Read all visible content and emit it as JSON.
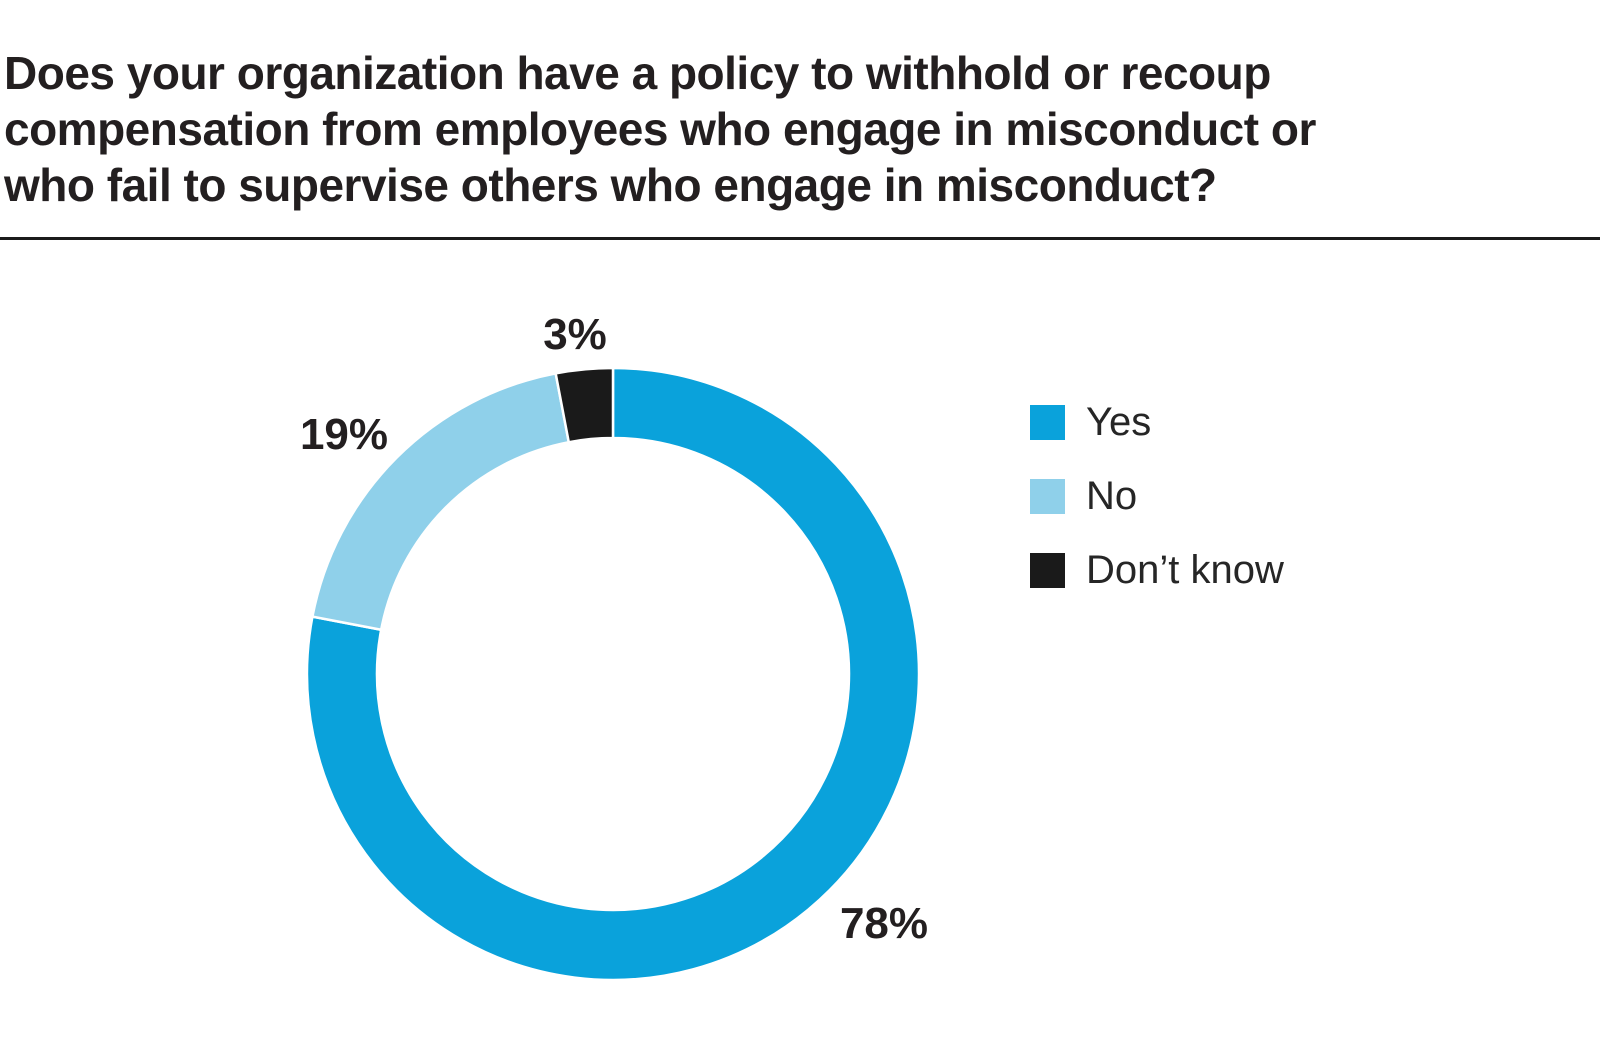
{
  "title": {
    "text": "Does your organization have a policy to withhold or recoup compensation from employees who engage in misconduct or who fail to supervise others who engage in misconduct?",
    "lines": [
      "Does your organization have a policy to withhold or recoup",
      "compensation from employees who engage in misconduct or",
      "who fail to supervise others who engage in misconduct?"
    ]
  },
  "chart_data": {
    "type": "pie",
    "subtype": "donut",
    "title": "Does your organization have a policy to withhold or recoup compensation from employees who engage in misconduct or who fail to supervise others who engage in misconduct?",
    "categories": [
      "Yes",
      "No",
      "Don't know"
    ],
    "values": [
      78,
      19,
      3
    ],
    "unit": "%",
    "direction": "clockwise",
    "start_angle_deg_from_top": 0,
    "inner_radius_ratio": 0.77,
    "legend_position": "right",
    "slices": [
      {
        "name": "Yes",
        "value": 78,
        "label": "78%",
        "color": "#0AA2DB"
      },
      {
        "name": "No",
        "value": 19,
        "label": "19%",
        "color": "#8FD0EA"
      },
      {
        "name": "Don’t know",
        "value": 3,
        "label": "3%",
        "color": "#1A1A1A"
      }
    ],
    "separator_color": "#FFFFFF",
    "text_color": "#231F20"
  }
}
